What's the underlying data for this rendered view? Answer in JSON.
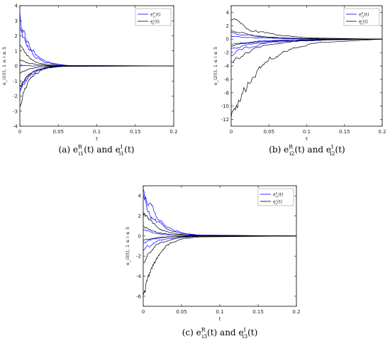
{
  "chart_data": [
    {
      "type": "line",
      "panel": "a",
      "caption": {
        "label": "(a)",
        "conj": "and",
        "terms": [
          {
            "base": "e",
            "sup": "R",
            "sub": "i1",
            "arg": "(t)"
          },
          {
            "base": "e",
            "sup": "I",
            "sub": "i1",
            "arg": "(t)"
          }
        ]
      },
      "xlabel": "t",
      "ylabel": "e_i1(t), 1 ≤ i ≤ 5",
      "xlim": [
        0,
        0.2
      ],
      "ylim": [
        -4,
        4
      ],
      "xticks": [
        "0",
        "0.05",
        "0.1",
        "0.15",
        "0.2"
      ],
      "yticks": [
        "-4",
        "-3",
        "-2",
        "-1",
        "0",
        "1",
        "2",
        "3",
        "4"
      ],
      "legend": {
        "position": "top-right",
        "entries": [
          {
            "base": "e",
            "sup": "R",
            "sub": "i1",
            "arg": "(t)",
            "color": "#0000ff"
          },
          {
            "base": "e",
            "sup": "I",
            "sub": "i1",
            "arg": "(t)",
            "color": "#000000"
          }
        ]
      },
      "settle_time": 0.065,
      "series": [
        {
          "group": "R",
          "initial": 3.3
        },
        {
          "group": "R",
          "initial": 2.7
        },
        {
          "group": "R",
          "initial": 0.0
        },
        {
          "group": "R",
          "initial": -1.4
        },
        {
          "group": "R",
          "initial": -1.7
        },
        {
          "group": "I",
          "initial": 1.3
        },
        {
          "group": "I",
          "initial": 0.5
        },
        {
          "group": "I",
          "initial": -0.5
        },
        {
          "group": "I",
          "initial": -1.5
        },
        {
          "group": "I",
          "initial": -2.5
        }
      ]
    },
    {
      "type": "line",
      "panel": "b",
      "caption": {
        "label": "(b)",
        "conj": "and",
        "terms": [
          {
            "base": "e",
            "sup": "R",
            "sub": "i2",
            "arg": "(t)"
          },
          {
            "base": "e",
            "sup": "I",
            "sub": "i2",
            "arg": "(t)"
          }
        ]
      },
      "xlabel": "t",
      "ylabel": "e_i2(t), 1 ≤ i ≤ 5",
      "xlim": [
        0,
        0.2
      ],
      "ylim": [
        -13,
        5
      ],
      "xticks": [
        "0",
        "0.05",
        "0.1",
        "0.15",
        "0.2"
      ],
      "yticks": [
        "-12",
        "-10",
        "-8",
        "-6",
        "-4",
        "-2",
        "0",
        "2",
        "4"
      ],
      "legend": {
        "position": "top-right",
        "entries": [
          {
            "base": "e",
            "sup": "R",
            "sub": "i2",
            "arg": "(t)",
            "color": "#0000ff"
          },
          {
            "base": "e",
            "sup": "I",
            "sub": "i2",
            "arg": "(t)",
            "color": "#000000"
          }
        ]
      },
      "settle_time": 0.125,
      "series": [
        {
          "group": "R",
          "initial": 1.0
        },
        {
          "group": "R",
          "initial": 0.5
        },
        {
          "group": "R",
          "initial": -0.8
        },
        {
          "group": "R",
          "initial": -1.5
        },
        {
          "group": "R",
          "initial": -2.3
        },
        {
          "group": "I",
          "initial": 3.0
        },
        {
          "group": "I",
          "initial": 1.2
        },
        {
          "group": "I",
          "initial": -1.0
        },
        {
          "group": "I",
          "initial": -3.5
        },
        {
          "group": "I",
          "initial": -12.5
        }
      ]
    },
    {
      "type": "line",
      "panel": "c",
      "caption": {
        "label": "(c)",
        "conj": "and",
        "terms": [
          {
            "base": "e",
            "sup": "R",
            "sub": "i3",
            "arg": "(t)"
          },
          {
            "base": "e",
            "sup": "I",
            "sub": "i3",
            "arg": "(t)"
          }
        ]
      },
      "xlabel": "t",
      "ylabel": "e_i3(t), 1 ≤ i ≤ 5",
      "xlim": [
        0,
        0.2
      ],
      "ylim": [
        -7,
        5
      ],
      "xticks": [
        "0",
        "0.05",
        "0.1",
        "0.15",
        "0.2"
      ],
      "yticks": [
        "-6",
        "-4",
        "-2",
        "0",
        "2",
        "4"
      ],
      "legend": {
        "position": "top-right",
        "entries": [
          {
            "base": "e",
            "sup": "R",
            "sub": "i3",
            "arg": "(t)",
            "color": "#0000ff"
          },
          {
            "base": "e",
            "sup": "I",
            "sub": "i3",
            "arg": "(t)",
            "color": "#000000"
          }
        ]
      },
      "settle_time": 0.075,
      "series": [
        {
          "group": "R",
          "initial": 4.8
        },
        {
          "group": "R",
          "initial": 3.7
        },
        {
          "group": "R",
          "initial": 0.7
        },
        {
          "group": "R",
          "initial": -0.7
        },
        {
          "group": "R",
          "initial": -1.6
        },
        {
          "group": "I",
          "initial": 2.5
        },
        {
          "group": "I",
          "initial": 1.0
        },
        {
          "group": "I",
          "initial": -0.5
        },
        {
          "group": "I",
          "initial": -2.5
        },
        {
          "group": "I",
          "initial": -6.0
        }
      ]
    }
  ],
  "colors": {
    "real": "#0000ff",
    "imag": "#000000",
    "zero_line": "#000000"
  }
}
